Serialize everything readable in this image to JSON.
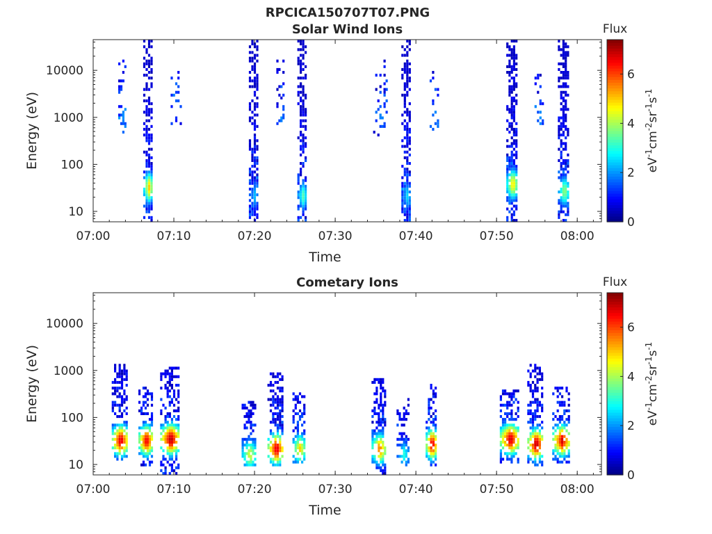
{
  "figure": {
    "title": "RPCICA150707T07.PNG"
  },
  "colormap": "jet",
  "chart_data": [
    {
      "type": "heatmap",
      "title": "Solar Wind Ions",
      "xlabel": "Time",
      "ylabel": "Energy (eV)",
      "x_scale": "time",
      "y_scale": "log",
      "xlim": [
        "07:00",
        "08:03"
      ],
      "ylim": [
        6,
        45000
      ],
      "x_ticks": [
        "07:00",
        "07:10",
        "07:20",
        "07:30",
        "07:40",
        "07:50",
        "08:00"
      ],
      "y_ticks": [
        10,
        100,
        1000,
        10000
      ],
      "y_tick_labels": [
        "10",
        "100",
        "1000",
        "10000"
      ],
      "colorbar": {
        "label": "Flux",
        "units_base": "eV",
        "units_tail": "cm",
        "units_tail2": "sr",
        "units_tail3": "s",
        "units_exp": "-1",
        "units_exp2": "-2",
        "ticks": [
          0,
          2,
          4,
          6
        ],
        "tick_labels": [
          "0",
          "2",
          "4",
          "6"
        ],
        "range": [
          0,
          7.4
        ]
      },
      "clusters": [
        {
          "t": 6.8,
          "spread": 0.6,
          "emin": 6,
          "emax": 40000,
          "peak": 5.0,
          "peak_e": 30,
          "density": 0.7
        },
        {
          "t": 3.6,
          "spread": 0.5,
          "emin": 300,
          "emax": 15000,
          "peak": 2.0,
          "peak_e": 1000,
          "density": 0.25
        },
        {
          "t": 10.3,
          "spread": 0.7,
          "emin": 600,
          "emax": 9000,
          "peak": 2.0,
          "peak_e": 1500,
          "density": 0.2
        },
        {
          "t": 19.9,
          "spread": 0.6,
          "emin": 6,
          "emax": 40000,
          "peak": 2.3,
          "peak_e": 20,
          "density": 0.7
        },
        {
          "t": 23.2,
          "spread": 0.5,
          "emin": 600,
          "emax": 15000,
          "peak": 2.0,
          "peak_e": 1000,
          "density": 0.25
        },
        {
          "t": 25.9,
          "spread": 0.6,
          "emin": 6,
          "emax": 40000,
          "peak": 3.3,
          "peak_e": 20,
          "density": 0.65
        },
        {
          "t": 35.6,
          "spread": 0.9,
          "emin": 300,
          "emax": 15000,
          "peak": 2.0,
          "peak_e": 1000,
          "density": 0.15
        },
        {
          "t": 38.8,
          "spread": 0.6,
          "emin": 6,
          "emax": 40000,
          "peak": 2.5,
          "peak_e": 20,
          "density": 0.7
        },
        {
          "t": 42.3,
          "spread": 0.6,
          "emin": 500,
          "emax": 9000,
          "peak": 2.0,
          "peak_e": 1000,
          "density": 0.2
        },
        {
          "t": 51.9,
          "spread": 0.7,
          "emin": 6,
          "emax": 40000,
          "peak": 5.0,
          "peak_e": 35,
          "density": 0.72
        },
        {
          "t": 55.3,
          "spread": 0.6,
          "emin": 500,
          "emax": 15000,
          "peak": 2.0,
          "peak_e": 1000,
          "density": 0.22
        },
        {
          "t": 58.3,
          "spread": 0.7,
          "emin": 6,
          "emax": 40000,
          "peak": 4.0,
          "peak_e": 25,
          "density": 0.7
        }
      ]
    },
    {
      "type": "heatmap",
      "title": "Cometary Ions",
      "xlabel": "Time",
      "ylabel": "Energy (eV)",
      "x_scale": "time",
      "y_scale": "log",
      "xlim": [
        "07:00",
        "08:03"
      ],
      "ylim": [
        6,
        45000
      ],
      "x_ticks": [
        "07:00",
        "07:10",
        "07:20",
        "07:30",
        "07:40",
        "07:50",
        "08:00"
      ],
      "y_ticks": [
        10,
        100,
        1000,
        10000
      ],
      "y_tick_labels": [
        "10",
        "100",
        "1000",
        "10000"
      ],
      "colorbar": {
        "label": "Flux",
        "units_base": "eV",
        "units_tail": "cm",
        "units_tail2": "sr",
        "units_tail3": "s",
        "units_exp": "-1",
        "units_exp2": "-2",
        "ticks": [
          0,
          2,
          4,
          6
        ],
        "tick_labels": [
          "0",
          "2",
          "4",
          "6"
        ],
        "range": [
          0,
          7.4
        ]
      },
      "clusters": [
        {
          "t": 3.3,
          "spread": 1.0,
          "emin": 12,
          "emax": 1200,
          "peak": 7.0,
          "peak_e": 30,
          "density": 0.6
        },
        {
          "t": 6.5,
          "spread": 0.9,
          "emin": 8,
          "emax": 400,
          "peak": 6.8,
          "peak_e": 30,
          "density": 0.6
        },
        {
          "t": 9.5,
          "spread": 1.2,
          "emin": 6,
          "emax": 1100,
          "peak": 7.2,
          "peak_e": 32,
          "density": 0.6
        },
        {
          "t": 19.3,
          "spread": 0.9,
          "emin": 8,
          "emax": 200,
          "peak": 4.5,
          "peak_e": 15,
          "density": 0.5
        },
        {
          "t": 22.6,
          "spread": 1.0,
          "emin": 8,
          "emax": 900,
          "peak": 7.0,
          "peak_e": 20,
          "density": 0.6
        },
        {
          "t": 25.5,
          "spread": 0.8,
          "emin": 10,
          "emax": 300,
          "peak": 5.0,
          "peak_e": 20,
          "density": 0.5
        },
        {
          "t": 35.4,
          "spread": 0.9,
          "emin": 6,
          "emax": 600,
          "peak": 5.8,
          "peak_e": 20,
          "density": 0.5
        },
        {
          "t": 38.4,
          "spread": 0.8,
          "emin": 8,
          "emax": 250,
          "peak": 3.0,
          "peak_e": 15,
          "density": 0.35
        },
        {
          "t": 41.9,
          "spread": 0.7,
          "emin": 8,
          "emax": 500,
          "peak": 7.0,
          "peak_e": 25,
          "density": 0.55
        },
        {
          "t": 51.6,
          "spread": 1.2,
          "emin": 10,
          "emax": 350,
          "peak": 7.0,
          "peak_e": 32,
          "density": 0.6
        },
        {
          "t": 54.8,
          "spread": 1.0,
          "emin": 8,
          "emax": 1200,
          "peak": 7.2,
          "peak_e": 25,
          "density": 0.6
        },
        {
          "t": 58.0,
          "spread": 1.1,
          "emin": 10,
          "emax": 400,
          "peak": 6.8,
          "peak_e": 30,
          "density": 0.6
        }
      ]
    }
  ]
}
